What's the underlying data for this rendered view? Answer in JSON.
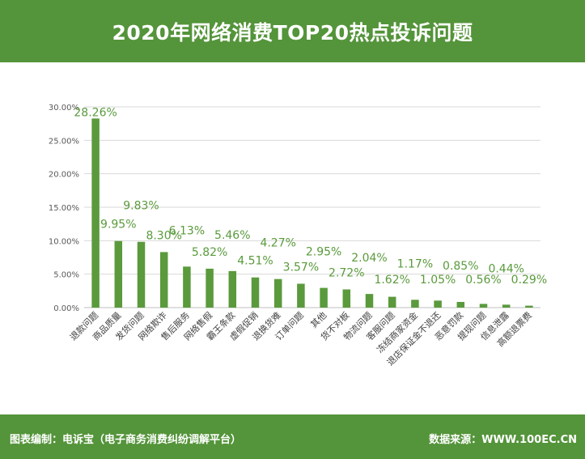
{
  "header": {
    "title": "2020年网络消费TOP20热点投诉问题"
  },
  "footer": {
    "left": "图表编制：电诉宝（电子商务消费纠纷调解平台）",
    "right": "数据来源：WWW.100EC.CN"
  },
  "colors": {
    "brand_green": "#54943a",
    "bar": "#5a9a3c",
    "label": "#5a9a3c"
  },
  "chart_data": {
    "type": "bar",
    "title": "2020年网络消费TOP20热点投诉问题",
    "xlabel": "",
    "ylabel": "",
    "ylim": [
      0,
      30
    ],
    "yticks": [
      "0.00%",
      "5.00%",
      "10.00%",
      "15.00%",
      "20.00%",
      "25.00%",
      "30.00%"
    ],
    "grid": true,
    "categories": [
      "退款问题",
      "商品质量",
      "发货问题",
      "网络欺诈",
      "售后服务",
      "网络售假",
      "霸王条款",
      "虚假促销",
      "退换货难",
      "订单问题",
      "其他",
      "货不对板",
      "物流问题",
      "客服问题",
      "冻结商家资金",
      "退店保证金不退还",
      "恶意罚款",
      "提现问题",
      "信息泄露",
      "高额退票费"
    ],
    "values": [
      28.26,
      9.95,
      9.83,
      8.3,
      6.13,
      5.82,
      5.46,
      4.51,
      4.27,
      3.57,
      2.95,
      2.72,
      2.04,
      1.62,
      1.17,
      1.05,
      0.85,
      0.56,
      0.44,
      0.29
    ],
    "value_labels": [
      "28.26%",
      "9.95%",
      "9.83%",
      "8.30%",
      "6.13%",
      "5.82%",
      "5.46%",
      "4.51%",
      "4.27%",
      "3.57%",
      "2.95%",
      "2.72%",
      "2.04%",
      "1.62%",
      "1.17%",
      "1.05%",
      "0.85%",
      "0.56%",
      "0.44%",
      "0.29%"
    ]
  }
}
